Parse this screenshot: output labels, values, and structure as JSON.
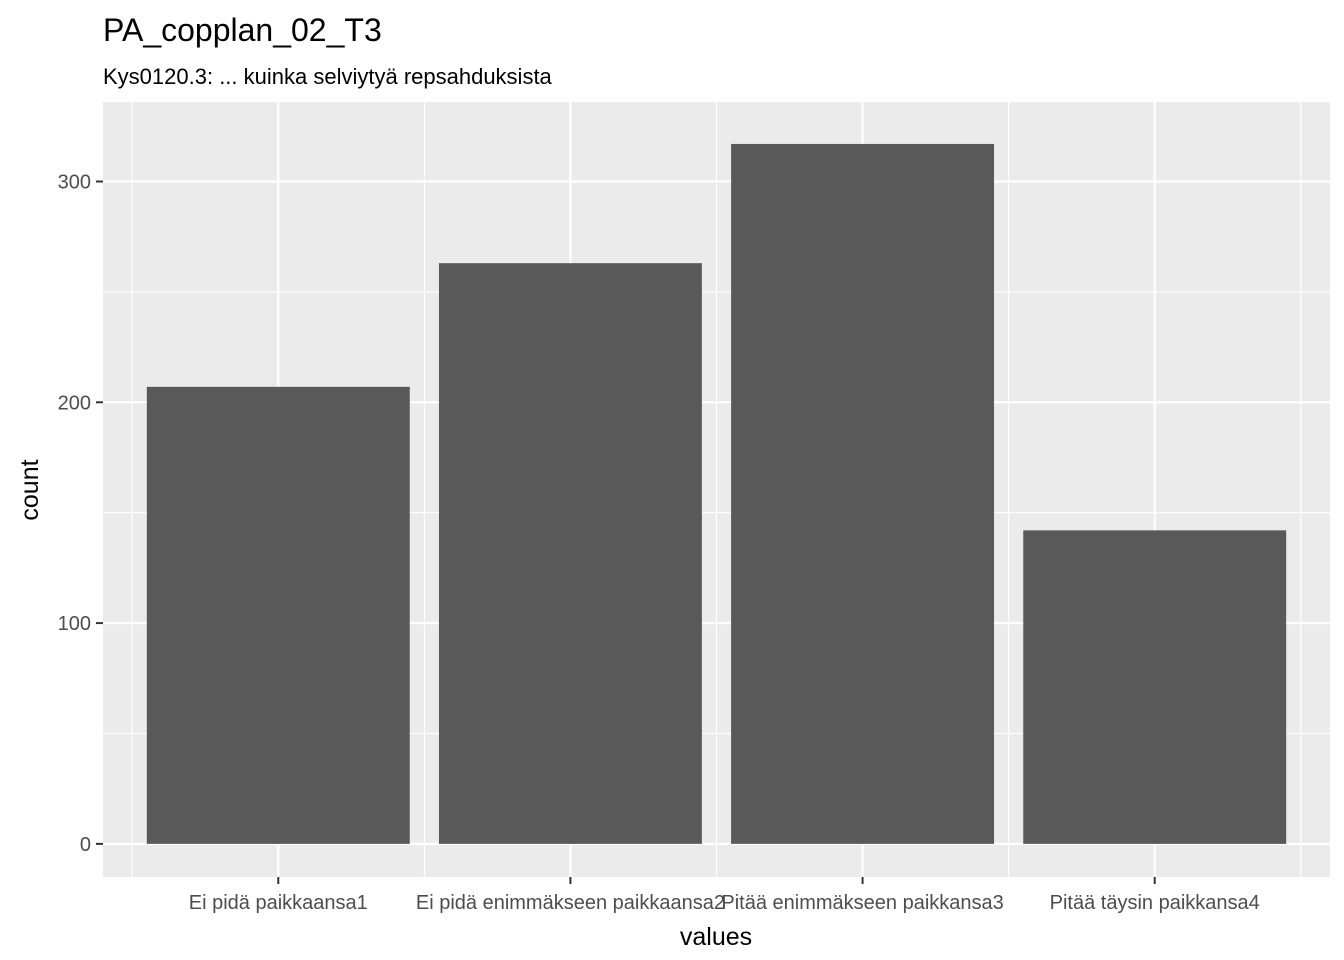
{
  "chart_data": {
    "type": "bar",
    "title": "PA_copplan_02_T3",
    "subtitle": "Kys0120.3: ... kuinka selviytyä repsahduksista",
    "xlabel": "values",
    "ylabel": "count",
    "categories": [
      "Ei pidä paikkaansa1",
      "Ei pidä enimmäkseen paikkaansa2",
      "Pitää enimmäkseen paikkansa3",
      "Pitää täysin paikkansa4"
    ],
    "values": [
      207,
      263,
      317,
      142
    ],
    "ylim": [
      -15,
      336
    ],
    "yticks": [
      0,
      100,
      200,
      300
    ],
    "ytick_labels": [
      "0",
      "100",
      "200",
      "300"
    ],
    "grid": true,
    "colors": {
      "panel": "#ebebeb",
      "grid": "#ffffff",
      "bar": "#595959",
      "tick": "#4d4d4d",
      "axis_tick": "#333333"
    }
  }
}
